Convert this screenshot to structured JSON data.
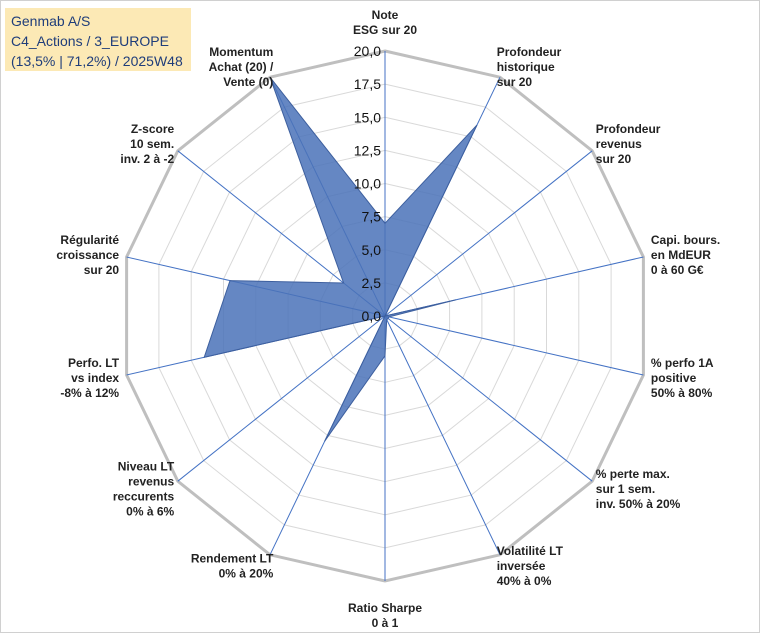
{
  "title": {
    "line1": "Genmab A/S",
    "line2": "C4_Actions / 3_EUROPE",
    "line3": "(13,5% | 71,2%) / 2025W48"
  },
  "colors": {
    "fill": "#4a72b8",
    "stroke": "#3d5f9e",
    "grid": "#d9d9d9",
    "outer_ring": "#bfbfbf",
    "axis": "#4472c4",
    "title_bg": "#fce9b5",
    "title_text": "#1f3d7a"
  },
  "chart_data": {
    "type": "radar",
    "rmin": 0,
    "rmax": 20,
    "tick_step": 2.5,
    "tick_labels": [
      "0,0",
      "2,5",
      "5,0",
      "7,5",
      "10,0",
      "12,5",
      "15,0",
      "17,5",
      "20,0"
    ],
    "categories": [
      [
        "Note",
        "ESG sur 20"
      ],
      [
        "Profondeur",
        "historique",
        "sur 20"
      ],
      [
        "Profondeur",
        "revenus",
        "sur 20"
      ],
      [
        "Capi. bours.",
        "en MdEUR",
        "0 à 60 G€"
      ],
      [
        "% perfo 1A",
        "positive",
        "50% à 80%"
      ],
      [
        "% perte max.",
        "sur 1 sem.",
        "inv. 50% à 20%"
      ],
      [
        "Volatilité LT",
        "inversée",
        "40% à 0%"
      ],
      [
        "Ratio Sharpe",
        "0 à 1"
      ],
      [
        "Rendement LT",
        "0% à 20%"
      ],
      [
        "Niveau LT",
        "revenus",
        "reccurents",
        "0% à 6%"
      ],
      [
        "Perfo. LT",
        "vs index",
        "-8% à 12%"
      ],
      [
        "Régularité",
        "croissance",
        "sur 20"
      ],
      [
        "Z-score",
        "10 sem.",
        "inv. 2 à -2"
      ],
      [
        "Momentum",
        "Achat (20) /",
        "Vente (0)"
      ]
    ],
    "series": [
      {
        "name": "Genmab A/S",
        "values": [
          7.0,
          16.0,
          0.0,
          5.5,
          0.3,
          0.3,
          0.3,
          3.0,
          10.5,
          0.0,
          14.0,
          12.0,
          4.0,
          20.0
        ]
      }
    ]
  }
}
